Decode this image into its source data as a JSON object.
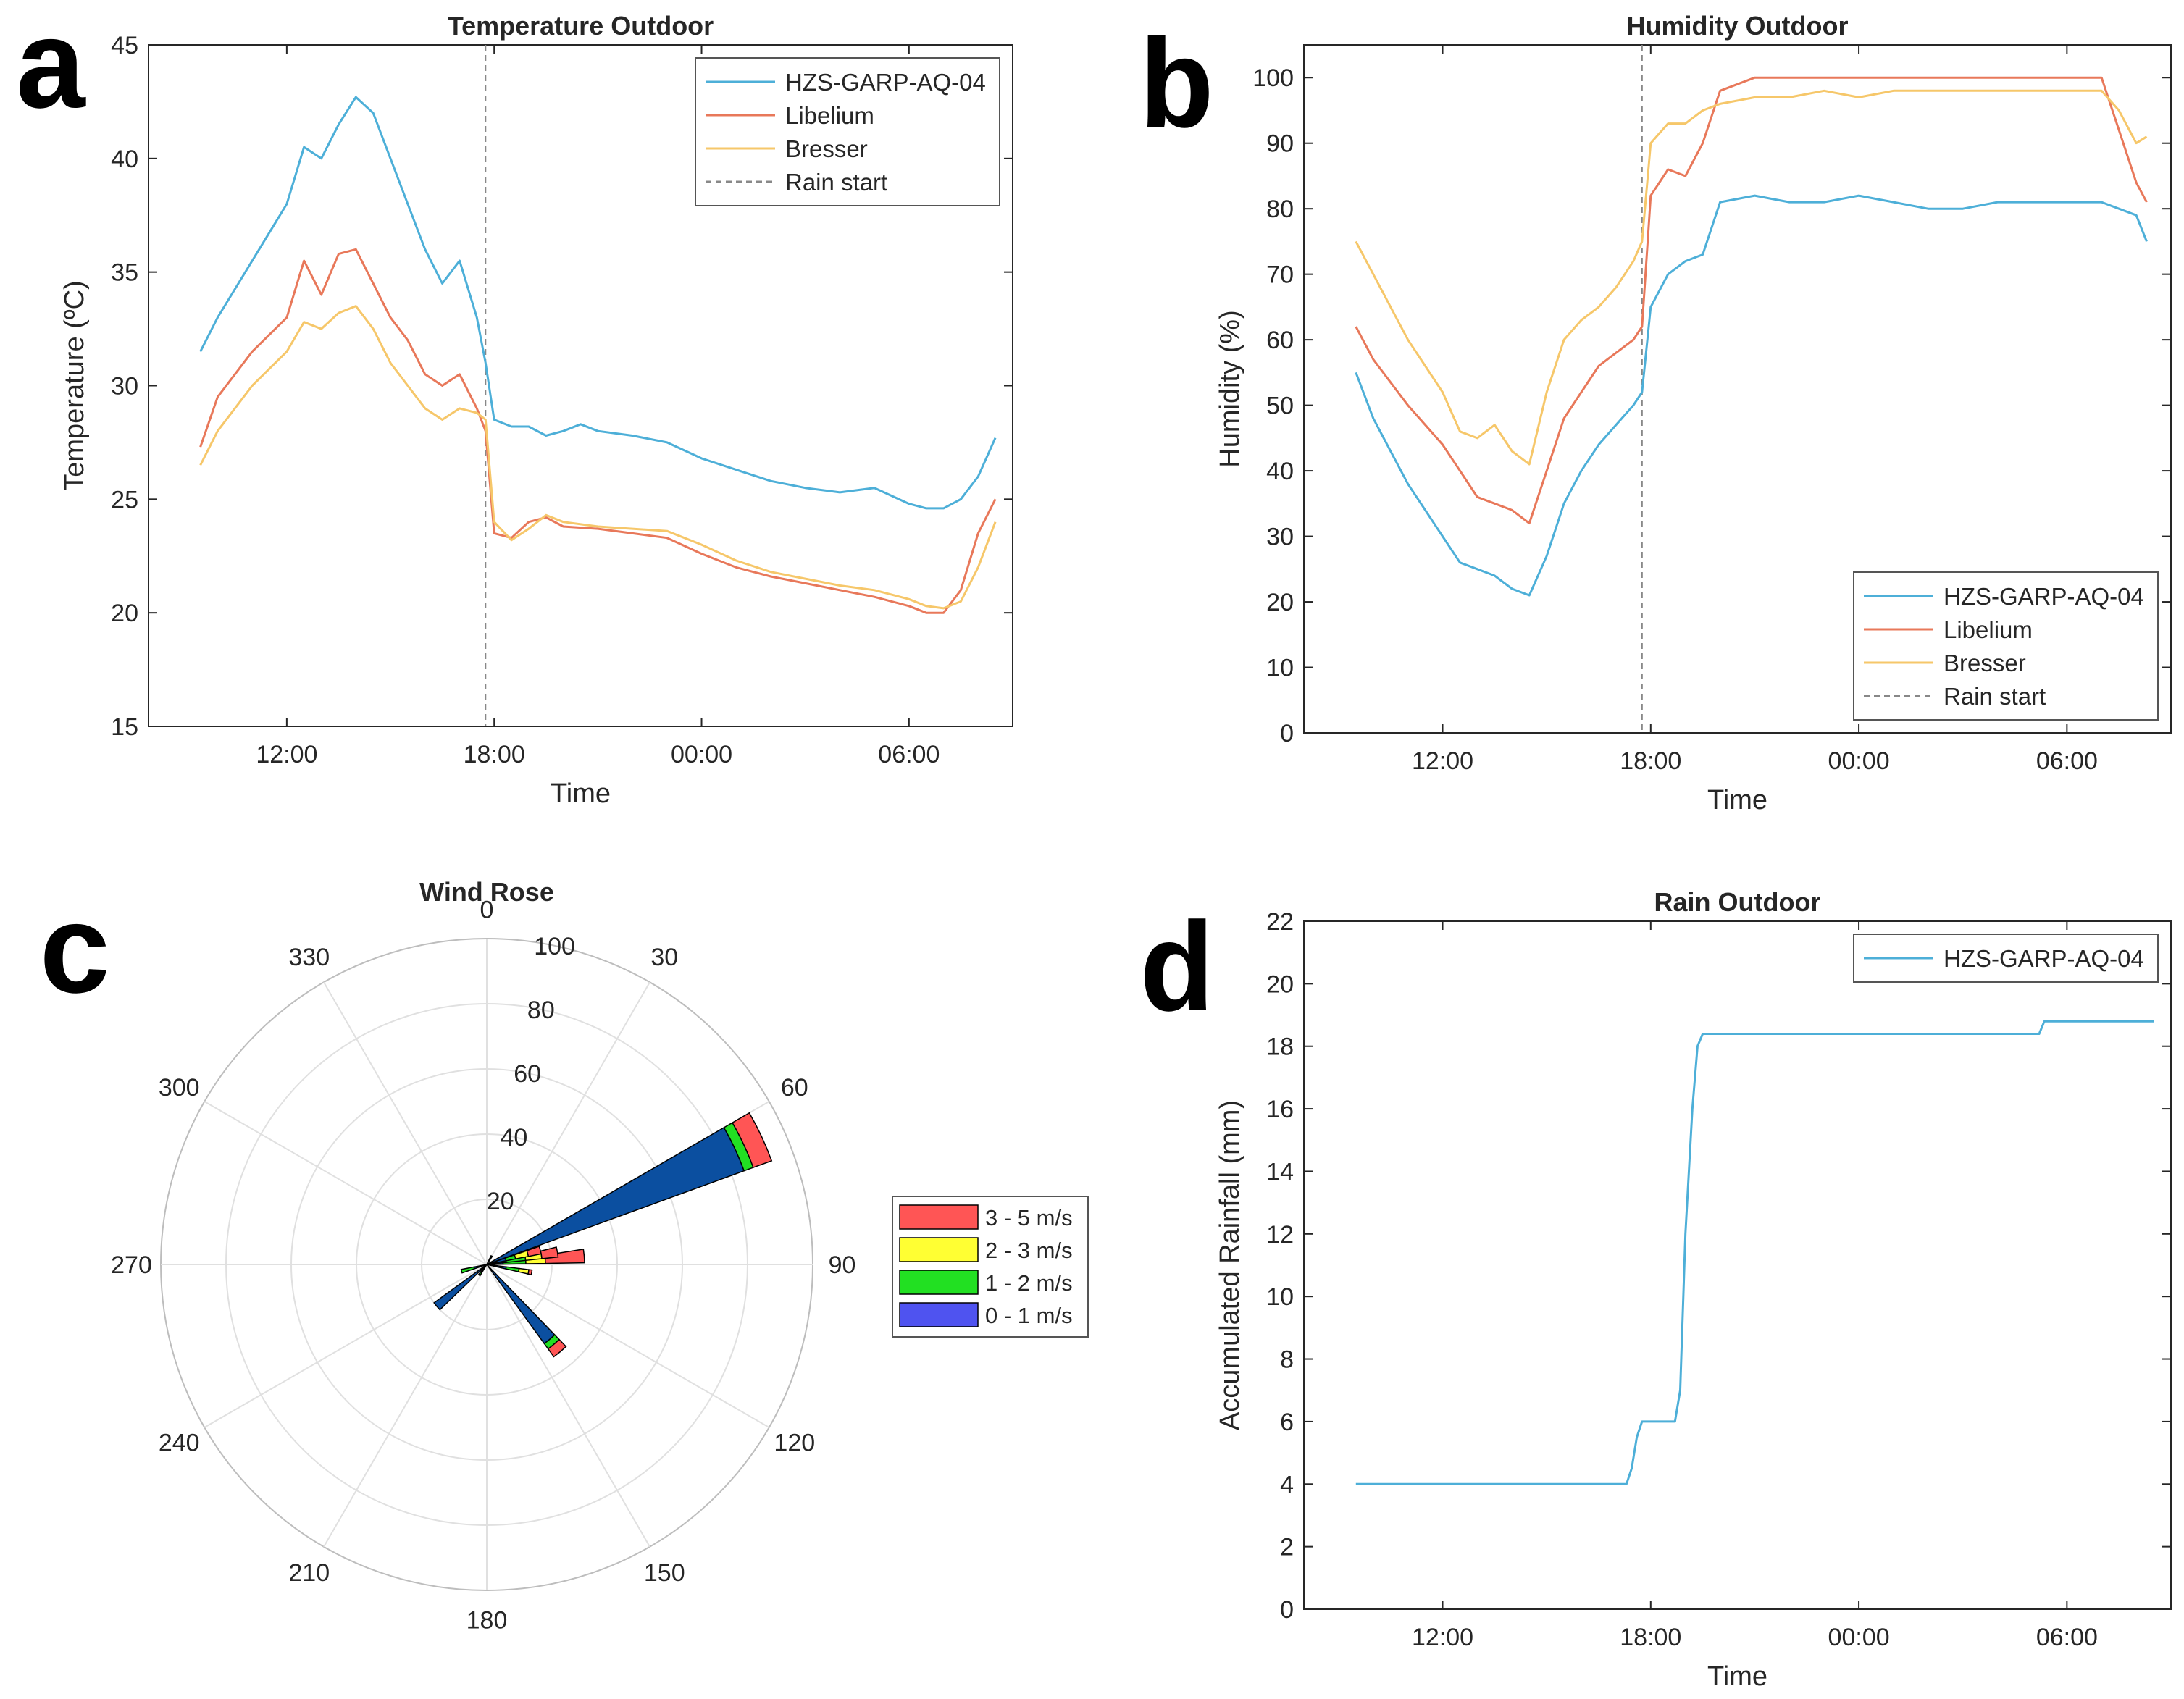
{
  "colors": {
    "hzs": "#4DAFD8",
    "libelium": "#E8785A",
    "bresser": "#F6C76A",
    "rain": "#888888",
    "axis": "#262626",
    "grid": "#e0e0e0",
    "wind_bins": [
      "#4F53F0",
      "#22E022",
      "#FFFF33",
      "#FF5555"
    ],
    "wind_main": "#0B4FA0"
  },
  "panel_letters": [
    "a",
    "b",
    "c",
    "d"
  ],
  "chart_data": [
    {
      "id": "a",
      "type": "line",
      "title": "Temperature Outdoor",
      "xlabel": "Time",
      "ylabel": "Temperature (ºC)",
      "xlim": [
        8.0,
        33.0
      ],
      "ylim": [
        15,
        45
      ],
      "yticks": [
        15,
        20,
        25,
        30,
        35,
        40,
        45
      ],
      "xticks": [
        12,
        18,
        24,
        30
      ],
      "xtick_labels": [
        "12:00",
        "18:00",
        "00:00",
        "06:00"
      ],
      "rain_start": 17.75,
      "legend": {
        "position": "top-right",
        "entries": [
          "HZS-GARP-AQ-04",
          "Libelium",
          "Bresser",
          "Rain start"
        ]
      },
      "series": [
        {
          "name": "HZS-GARP-AQ-04",
          "color_key": "hzs",
          "x": [
            9.5,
            10.0,
            11.0,
            12.0,
            12.5,
            13.0,
            13.5,
            14.0,
            14.5,
            15.0,
            15.5,
            16.0,
            16.5,
            17.0,
            17.5,
            17.75,
            18.0,
            18.5,
            19.0,
            19.5,
            20.0,
            20.5,
            21.0,
            22.0,
            23.0,
            24.0,
            25.0,
            26.0,
            27.0,
            28.0,
            29.0,
            30.0,
            30.5,
            31.0,
            31.5,
            32.0,
            32.5
          ],
          "y": [
            31.5,
            33.0,
            35.5,
            38.0,
            40.5,
            40.0,
            41.5,
            42.7,
            42.0,
            40.0,
            38.0,
            36.0,
            34.5,
            35.5,
            33.0,
            31.0,
            28.5,
            28.2,
            28.2,
            27.8,
            28.0,
            28.3,
            28.0,
            27.8,
            27.5,
            26.8,
            26.3,
            25.8,
            25.5,
            25.3,
            25.5,
            24.8,
            24.6,
            24.6,
            25.0,
            26.0,
            27.7
          ]
        },
        {
          "name": "Libelium",
          "color_key": "libelium",
          "x": [
            9.5,
            10.0,
            11.0,
            12.0,
            12.5,
            13.0,
            13.5,
            14.0,
            14.5,
            15.0,
            15.5,
            16.0,
            16.5,
            17.0,
            17.5,
            17.75,
            18.0,
            18.5,
            19.0,
            19.5,
            20.0,
            21.0,
            22.0,
            23.0,
            24.0,
            25.0,
            26.0,
            27.0,
            28.0,
            29.0,
            30.0,
            30.5,
            31.0,
            31.5,
            32.0,
            32.5
          ],
          "y": [
            27.3,
            29.5,
            31.5,
            33.0,
            35.5,
            34.0,
            35.8,
            36.0,
            34.5,
            33.0,
            32.0,
            30.5,
            30.0,
            30.5,
            29.0,
            28.0,
            23.5,
            23.3,
            24.0,
            24.2,
            23.8,
            23.7,
            23.5,
            23.3,
            22.6,
            22.0,
            21.6,
            21.3,
            21.0,
            20.7,
            20.3,
            20.0,
            20.0,
            21.0,
            23.5,
            25.0
          ]
        },
        {
          "name": "Bresser",
          "color_key": "bresser",
          "x": [
            9.5,
            10.0,
            11.0,
            12.0,
            12.5,
            13.0,
            13.5,
            14.0,
            14.5,
            15.0,
            15.5,
            16.0,
            16.5,
            17.0,
            17.5,
            17.75,
            18.0,
            18.5,
            19.0,
            19.5,
            20.0,
            21.0,
            22.0,
            23.0,
            24.0,
            25.0,
            26.0,
            27.0,
            28.0,
            29.0,
            30.0,
            30.5,
            31.0,
            31.5,
            32.0,
            32.5
          ],
          "y": [
            26.5,
            28.0,
            30.0,
            31.5,
            32.8,
            32.5,
            33.2,
            33.5,
            32.5,
            31.0,
            30.0,
            29.0,
            28.5,
            29.0,
            28.8,
            28.5,
            24.0,
            23.2,
            23.7,
            24.3,
            24.0,
            23.8,
            23.7,
            23.6,
            23.0,
            22.3,
            21.8,
            21.5,
            21.2,
            21.0,
            20.6,
            20.3,
            20.2,
            20.5,
            22.0,
            24.0
          ]
        }
      ]
    },
    {
      "id": "b",
      "type": "line",
      "title": "Humidity Outdoor",
      "xlabel": "Time",
      "ylabel": "Humidity (%)",
      "xlim": [
        8.0,
        33.0
      ],
      "ylim": [
        0,
        105
      ],
      "yticks": [
        0,
        10,
        20,
        30,
        40,
        50,
        60,
        70,
        80,
        90,
        100
      ],
      "xticks": [
        12,
        18,
        24,
        30
      ],
      "xtick_labels": [
        "12:00",
        "18:00",
        "00:00",
        "06:00"
      ],
      "rain_start": 17.75,
      "legend": {
        "position": "bottom-right",
        "entries": [
          "HZS-GARP-AQ-04",
          "Libelium",
          "Bresser",
          "Rain start"
        ]
      },
      "series": [
        {
          "name": "HZS-GARP-AQ-04",
          "color_key": "hzs",
          "x": [
            9.5,
            10.0,
            11.0,
            12.0,
            12.5,
            13.0,
            13.5,
            14.0,
            14.5,
            15.0,
            15.5,
            16.0,
            16.5,
            17.0,
            17.5,
            17.75,
            18.0,
            18.5,
            19.0,
            19.5,
            20.0,
            21.0,
            22.0,
            23.0,
            24.0,
            25.0,
            26.0,
            27.0,
            28.0,
            29.0,
            30.0,
            30.5,
            31.0,
            31.5,
            32.0,
            32.3
          ],
          "y": [
            55.0,
            48.0,
            38.0,
            30.0,
            26.0,
            25.0,
            24.0,
            22.0,
            21.0,
            27.0,
            35.0,
            40.0,
            44.0,
            47.0,
            50.0,
            52.0,
            65.0,
            70.0,
            72.0,
            73.0,
            81.0,
            82.0,
            81.0,
            81.0,
            82.0,
            81.0,
            80.0,
            80.0,
            81.0,
            81.0,
            81.0,
            81.0,
            81.0,
            80.0,
            79.0,
            75.0
          ]
        },
        {
          "name": "Libelium",
          "color_key": "libelium",
          "x": [
            9.5,
            10.0,
            11.0,
            12.0,
            12.5,
            13.0,
            13.5,
            14.0,
            14.5,
            15.0,
            15.5,
            16.0,
            16.5,
            17.0,
            17.5,
            17.75,
            18.0,
            18.5,
            19.0,
            19.5,
            20.0,
            21.0,
            22.0,
            23.0,
            24.0,
            25.0,
            26.0,
            27.0,
            28.0,
            29.0,
            30.0,
            30.5,
            31.0,
            31.5,
            32.0,
            32.3
          ],
          "y": [
            62.0,
            57.0,
            50.0,
            44.0,
            40.0,
            36.0,
            35.0,
            34.0,
            32.0,
            40.0,
            48.0,
            52.0,
            56.0,
            58.0,
            60.0,
            62.0,
            82.0,
            86.0,
            85.0,
            90.0,
            98.0,
            100.0,
            100.0,
            100.0,
            100.0,
            100.0,
            100.0,
            100.0,
            100.0,
            100.0,
            100.0,
            100.0,
            100.0,
            92.0,
            84.0,
            81.0
          ]
        },
        {
          "name": "Bresser",
          "color_key": "bresser",
          "x": [
            9.5,
            10.0,
            11.0,
            12.0,
            12.5,
            13.0,
            13.5,
            14.0,
            14.5,
            15.0,
            15.5,
            16.0,
            16.5,
            17.0,
            17.5,
            17.75,
            18.0,
            18.5,
            19.0,
            19.5,
            20.0,
            21.0,
            22.0,
            23.0,
            24.0,
            25.0,
            26.0,
            27.0,
            28.0,
            29.0,
            30.0,
            30.5,
            31.0,
            31.5,
            32.0,
            32.3
          ],
          "y": [
            75.0,
            70.0,
            60.0,
            52.0,
            46.0,
            45.0,
            47.0,
            43.0,
            41.0,
            52.0,
            60.0,
            63.0,
            65.0,
            68.0,
            72.0,
            75.0,
            90.0,
            93.0,
            93.0,
            95.0,
            96.0,
            97.0,
            97.0,
            98.0,
            97.0,
            98.0,
            98.0,
            98.0,
            98.0,
            98.0,
            98.0,
            98.0,
            98.0,
            95.0,
            90.0,
            91.0
          ]
        }
      ]
    },
    {
      "id": "c",
      "type": "polar-bar",
      "title": "Wind Rose",
      "r_max": 100,
      "rings": [
        20,
        40,
        60,
        80,
        100
      ],
      "ring_labels": [
        "20",
        "40",
        "60",
        "80",
        "100"
      ],
      "angle_labels": [
        "0",
        "30",
        "60",
        "90",
        "120",
        "150",
        "180",
        "210",
        "240",
        "270",
        "300",
        "330"
      ],
      "bins": [
        "0 - 1 m/s",
        "1 - 2 m/s",
        "2 - 3 m/s",
        "3 - 5 m/s"
      ],
      "legend": {
        "position": "right",
        "entries": [
          "3 - 5 m/s",
          "2 - 3 m/s",
          "1 - 2 m/s",
          "0 - 1 m/s"
        ]
      },
      "sectors": [
        {
          "direction": 65,
          "width": 10,
          "cumulative": [
            84,
            87,
            87,
            93
          ],
          "main": true
        },
        {
          "direction": 85,
          "width": 8,
          "cumulative": [
            5,
            12,
            18,
            30
          ]
        },
        {
          "direction": 80,
          "width": 8,
          "cumulative": [
            6,
            12,
            17,
            22
          ]
        },
        {
          "direction": 75,
          "width": 8,
          "cumulative": [
            6,
            9,
            13,
            17
          ]
        },
        {
          "direction": 100,
          "width": 6,
          "cumulative": [
            6,
            10,
            13,
            14
          ]
        },
        {
          "direction": 140,
          "width": 8,
          "cumulative": [
            30,
            32,
            32,
            35
          ]
        },
        {
          "direction": 230,
          "width": 8,
          "cumulative": [
            20,
            20,
            20,
            20
          ]
        },
        {
          "direction": 255,
          "width": 8,
          "cumulative": [
            4,
            8,
            8,
            8
          ]
        },
        {
          "direction": 215,
          "width": 8,
          "cumulative": [
            3,
            4,
            4,
            4
          ]
        },
        {
          "direction": 30,
          "width": 8,
          "cumulative": [
            2,
            3,
            3,
            3
          ]
        }
      ]
    },
    {
      "id": "d",
      "type": "line",
      "title": "Rain Outdoor",
      "xlabel": "Time",
      "ylabel": "Accumulated Rainfall (mm)",
      "xlim": [
        8.0,
        33.0
      ],
      "ylim": [
        0,
        22
      ],
      "yticks": [
        0,
        2,
        4,
        6,
        8,
        10,
        12,
        14,
        16,
        18,
        20,
        22
      ],
      "xticks": [
        12,
        18,
        24,
        30
      ],
      "xtick_labels": [
        "12:00",
        "18:00",
        "00:00",
        "06:00"
      ],
      "legend": {
        "position": "top-right",
        "entries": [
          "HZS-GARP-AQ-04"
        ]
      },
      "series": [
        {
          "name": "HZS-GARP-AQ-04",
          "color_key": "hzs",
          "x": [
            9.5,
            17.3,
            17.45,
            17.6,
            17.75,
            18.7,
            18.85,
            19.0,
            19.2,
            19.35,
            19.5,
            29.2,
            29.35,
            32.5
          ],
          "y": [
            4.0,
            4.0,
            4.5,
            5.5,
            6.0,
            6.0,
            7.0,
            12.0,
            16.0,
            18.0,
            18.4,
            18.4,
            18.8,
            18.8
          ]
        }
      ]
    }
  ]
}
